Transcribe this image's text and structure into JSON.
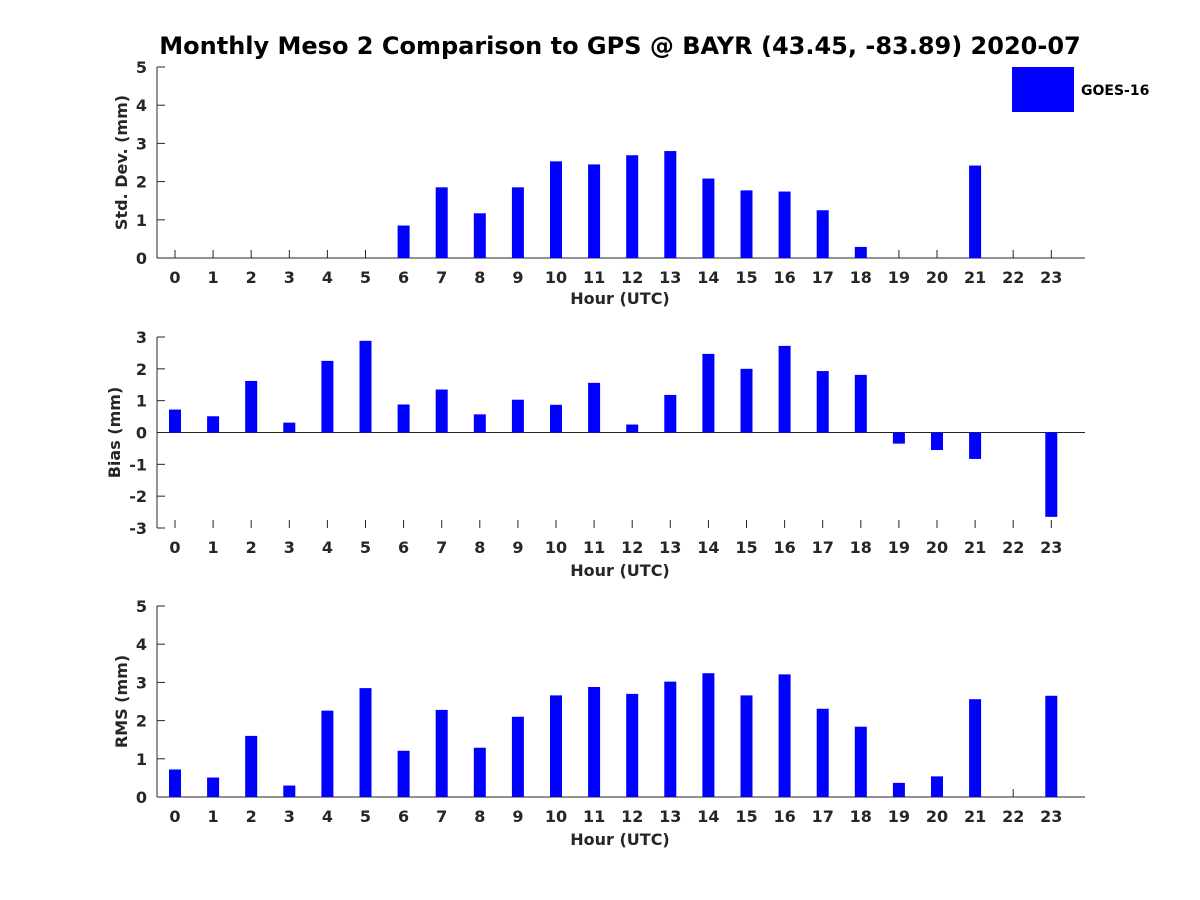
{
  "title": "Monthly Meso 2 Comparison to GPS @ BAYR (43.45, -83.89) 2020-07",
  "legend": {
    "label": "GOES-16",
    "color": "#0000ff",
    "position": "top-right"
  },
  "chart_data": [
    {
      "type": "bar",
      "xlabel": "Hour (UTC)",
      "ylabel": "Std. Dev. (mm)",
      "ylim": [
        0,
        5
      ],
      "yticks": [
        "0",
        "1",
        "2",
        "3",
        "4",
        "5"
      ],
      "categories": [
        "0",
        "1",
        "2",
        "3",
        "4",
        "5",
        "6",
        "7",
        "8",
        "9",
        "10",
        "11",
        "12",
        "13",
        "14",
        "15",
        "16",
        "17",
        "18",
        "19",
        "20",
        "21",
        "22",
        "23"
      ],
      "series": [
        {
          "name": "GOES-16",
          "color": "#0000ff",
          "values": [
            0,
            0,
            0,
            0,
            0,
            0,
            0.85,
            1.85,
            1.17,
            1.85,
            2.53,
            2.45,
            2.69,
            2.8,
            2.08,
            1.77,
            1.74,
            1.25,
            0.29,
            0,
            0,
            2.42,
            0,
            0
          ]
        }
      ],
      "grid": false
    },
    {
      "type": "bar",
      "xlabel": "Hour (UTC)",
      "ylabel": "Bias (mm)",
      "ylim": [
        -3,
        3
      ],
      "yticks": [
        "-3",
        "-2",
        "-1",
        "0",
        "1",
        "2",
        "3"
      ],
      "categories": [
        "0",
        "1",
        "2",
        "3",
        "4",
        "5",
        "6",
        "7",
        "8",
        "9",
        "10",
        "11",
        "12",
        "13",
        "14",
        "15",
        "16",
        "17",
        "18",
        "19",
        "20",
        "21",
        "22",
        "23"
      ],
      "series": [
        {
          "name": "GOES-16",
          "color": "#0000ff",
          "values": [
            0.72,
            0.51,
            1.62,
            0.31,
            2.25,
            2.88,
            0.88,
            1.35,
            0.57,
            1.03,
            0.87,
            1.56,
            0.25,
            1.18,
            2.47,
            2.0,
            2.72,
            1.93,
            1.81,
            -0.35,
            -0.55,
            -0.83,
            0,
            -2.65
          ]
        }
      ],
      "grid": false
    },
    {
      "type": "bar",
      "xlabel": "Hour (UTC)",
      "ylabel": "RMS (mm)",
      "ylim": [
        0,
        5
      ],
      "yticks": [
        "0",
        "1",
        "2",
        "3",
        "4",
        "5"
      ],
      "categories": [
        "0",
        "1",
        "2",
        "3",
        "4",
        "5",
        "6",
        "7",
        "8",
        "9",
        "10",
        "11",
        "12",
        "13",
        "14",
        "15",
        "16",
        "17",
        "18",
        "19",
        "20",
        "21",
        "22",
        "23"
      ],
      "series": [
        {
          "name": "GOES-16",
          "color": "#0000ff",
          "values": [
            0.72,
            0.51,
            1.6,
            0.3,
            2.26,
            2.85,
            1.21,
            2.28,
            1.29,
            2.1,
            2.66,
            2.88,
            2.7,
            3.02,
            3.24,
            2.66,
            3.21,
            2.31,
            1.84,
            0.37,
            0.54,
            2.56,
            0,
            2.65
          ]
        }
      ],
      "grid": false
    }
  ]
}
